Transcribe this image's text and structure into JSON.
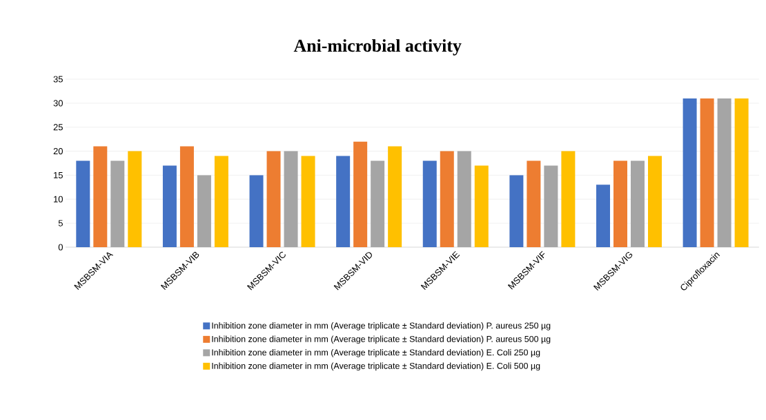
{
  "chart_data": {
    "type": "bar",
    "title": "Ani-microbial activity",
    "categories": [
      "MSBSM-VIA",
      "MSBSM-VIB",
      "MSBSM-VIC",
      "MSBSM-VID",
      "MSBSM-VIE",
      "MSBSM-VIF",
      "MSBSM-VIG",
      "Ciprofloxacin"
    ],
    "series": [
      {
        "name": "Inhibition zone diameter in mm (Average triplicate ± Standard deviation) P. aureus 250 µg",
        "color": "#4472c4",
        "values": [
          18,
          17,
          15,
          19,
          18,
          15,
          13,
          31
        ]
      },
      {
        "name": "Inhibition zone diameter in mm (Average triplicate ± Standard deviation) P. aureus 500 µg",
        "color": "#ed7d31",
        "values": [
          21,
          21,
          20,
          22,
          20,
          18,
          18,
          31
        ]
      },
      {
        "name": "Inhibition zone diameter in mm (Average triplicate ± Standard deviation) E. Coli 250 µg",
        "color": "#a5a5a5",
        "values": [
          18,
          15,
          20,
          18,
          20,
          17,
          18,
          31
        ]
      },
      {
        "name": "Inhibition zone diameter in mm (Average triplicate ± Standard deviation) E. Coli 500 µg",
        "color": "#ffc000",
        "values": [
          20,
          19,
          19,
          21,
          17,
          20,
          19,
          31
        ]
      }
    ],
    "ylim": [
      0,
      35
    ],
    "yticks": [
      0,
      5,
      10,
      15,
      20,
      25,
      30,
      35
    ],
    "grid": "y",
    "legend": "bottom"
  }
}
